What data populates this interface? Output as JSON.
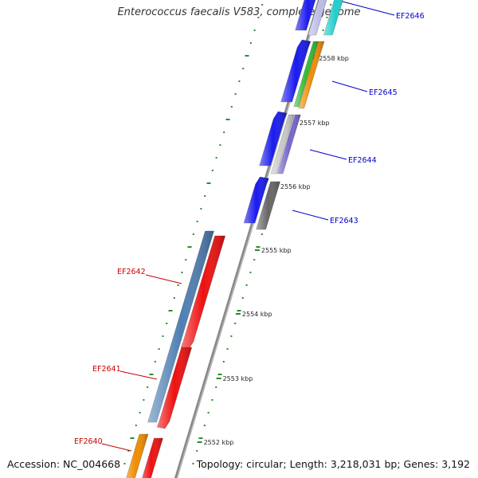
{
  "title": "Enterococcus faecalis V583, complete genome",
  "footer": {
    "accession": "Accession: NC_004668",
    "summary": "Topology: circular; Length: 3,218,031 bp; Genes: 3,192"
  },
  "scale_labels": [
    "2552 kbp",
    "2553 kbp",
    "2554 kbp",
    "2555 kbp",
    "2556 kbp",
    "2557 kbp",
    "2558 kbp"
  ],
  "gene_labels": [
    {
      "name": "EF2646",
      "strand": "forward"
    },
    {
      "name": "EF2645",
      "strand": "forward"
    },
    {
      "name": "EF2644",
      "strand": "forward"
    },
    {
      "name": "EF2643",
      "strand": "forward"
    },
    {
      "name": "EF2642",
      "strand": "reverse"
    },
    {
      "name": "EF2641",
      "strand": "reverse"
    },
    {
      "name": "EF2640",
      "strand": "reverse"
    }
  ],
  "colors": {
    "forward_label": "#0000cc",
    "reverse_label": "#cc0000",
    "backbone": "#8a8a8a",
    "tick": "#2e8b2e",
    "cds_forward": "#1a1aee",
    "cds_reverse": "#ee1111",
    "blue_gray": "#4f7fb3",
    "orange": "#f08c00",
    "green": "#33bb33",
    "cyan": "#22cccc",
    "lavender": "#bbbbe6",
    "purple": "#7766cc",
    "light_gray": "#c8c8c8",
    "dark_gray": "#666666"
  }
}
